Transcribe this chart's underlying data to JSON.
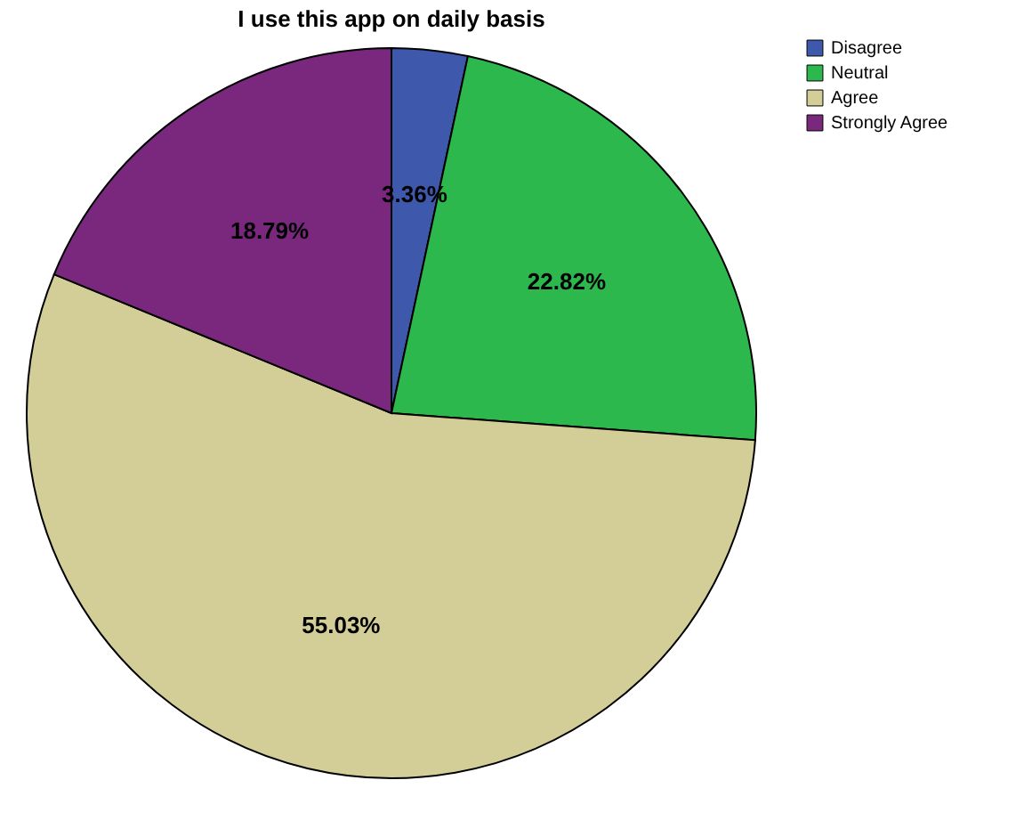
{
  "chart_data": {
    "type": "pie",
    "title": "I use this app on daily basis",
    "categories": [
      "Disagree",
      "Neutral",
      "Agree",
      "Strongly Agree"
    ],
    "values": [
      3.36,
      22.82,
      55.03,
      18.79
    ],
    "colors": [
      "#3e58ac",
      "#2db84d",
      "#d3ce97",
      "#79287e"
    ],
    "value_labels": [
      "3.36%",
      "22.82%",
      "55.03%",
      "18.79%"
    ],
    "legend": "top right"
  }
}
